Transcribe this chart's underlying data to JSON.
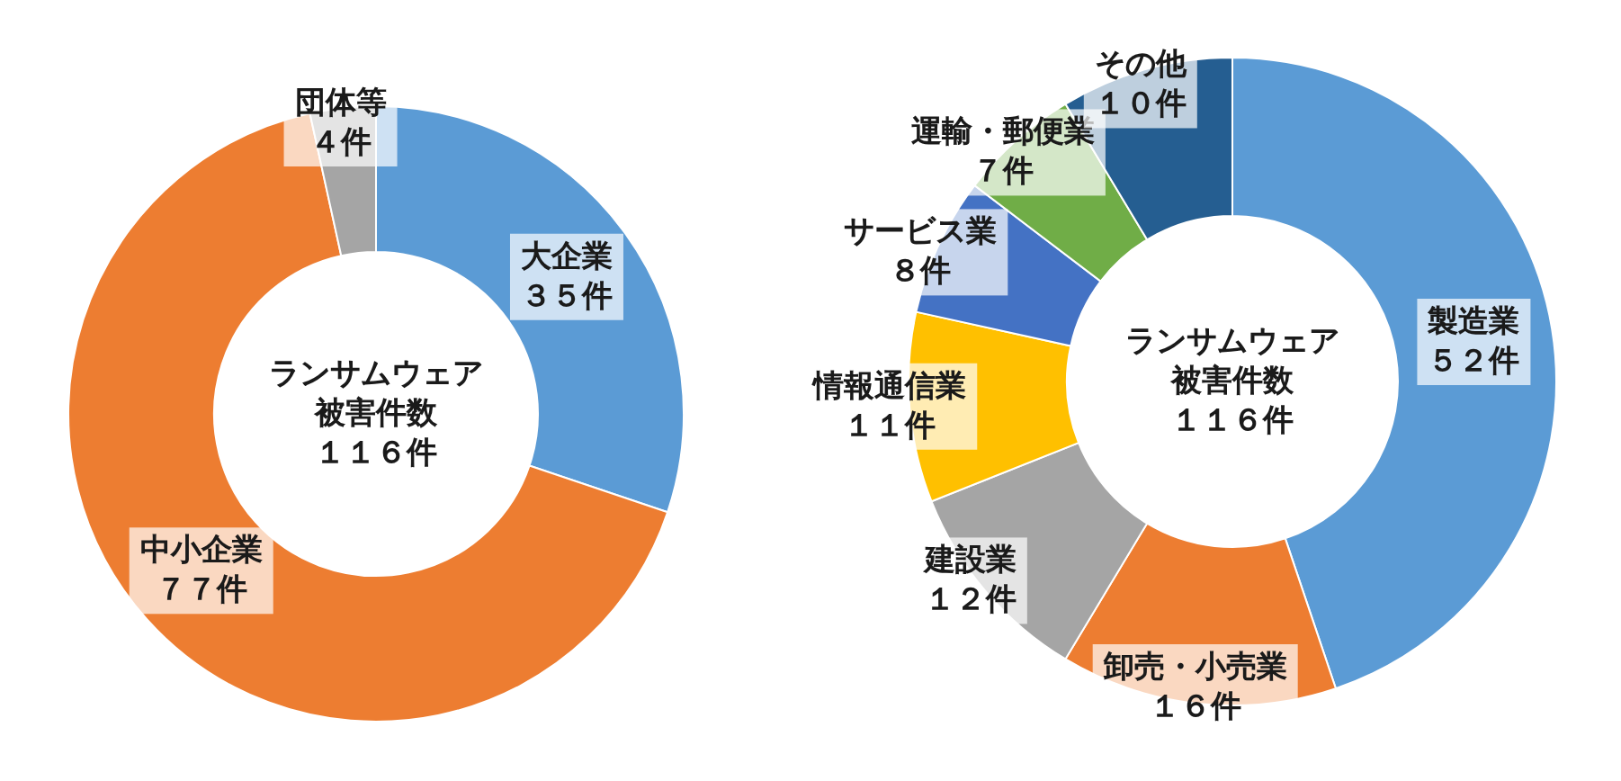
{
  "chart_data": [
    {
      "type": "donut",
      "categories": [
        "大企業",
        "中小企業",
        "団体等"
      ],
      "values": [
        35,
        77,
        4
      ],
      "value_labels": [
        "３５件",
        "７７件",
        "４件"
      ],
      "colors": [
        "#5b9bd5",
        "#ed7d31",
        "#a5a5a5"
      ],
      "annotations": [
        "ランサムウェア",
        "被害件数",
        "１１６件"
      ]
    },
    {
      "type": "donut",
      "categories": [
        "製造業",
        "卸売・小売業",
        "建設業",
        "情報通信業",
        "サービス業",
        "運輸・郵便業",
        "その他"
      ],
      "values": [
        52,
        16,
        12,
        11,
        8,
        7,
        10
      ],
      "value_labels": [
        "５２件",
        "１６件",
        "１２件",
        "１１件",
        "８件",
        "７件",
        "１０件"
      ],
      "colors": [
        "#5b9bd5",
        "#ed7d31",
        "#a5a5a5",
        "#ffc000",
        "#4472c4",
        "#70ad47",
        "#255e91"
      ],
      "annotations": [
        "ランサムウェア",
        "被害件数",
        "１１６件"
      ]
    }
  ]
}
